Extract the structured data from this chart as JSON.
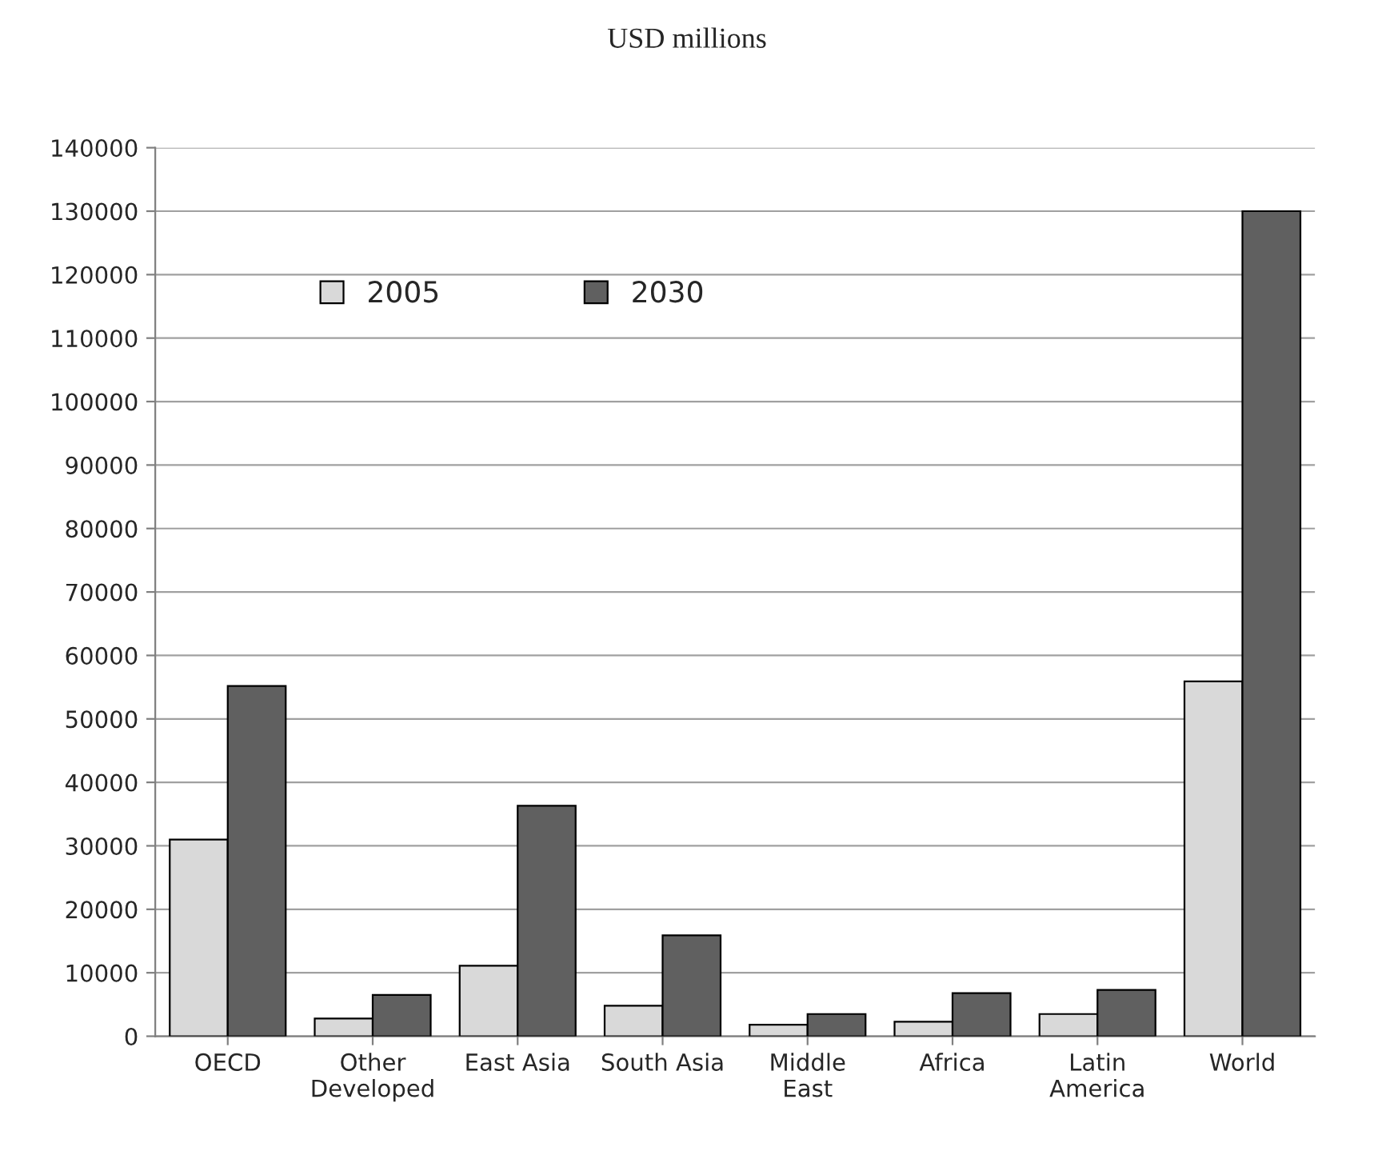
{
  "chart_data": {
    "type": "bar",
    "title": "USD millions",
    "categories": [
      "OECD",
      "Other\nDeveloped",
      "East Asia",
      "South Asia",
      "Middle\nEast",
      "Africa",
      "Latin\nAmerica",
      "World"
    ],
    "series": [
      {
        "name": "2005",
        "color": "#d9d9d9",
        "values": [
          31000,
          2800,
          11100,
          4800,
          1800,
          2300,
          3500,
          55900
        ]
      },
      {
        "name": "2030",
        "color": "#606060",
        "values": [
          55200,
          6500,
          36300,
          15900,
          3500,
          6800,
          7300,
          130000
        ]
      }
    ],
    "ylim": [
      0,
      140000
    ],
    "yticks": [
      0,
      10000,
      20000,
      30000,
      40000,
      50000,
      60000,
      70000,
      80000,
      90000,
      100000,
      110000,
      120000,
      130000,
      140000
    ],
    "grid": "y",
    "legend": "top left"
  }
}
